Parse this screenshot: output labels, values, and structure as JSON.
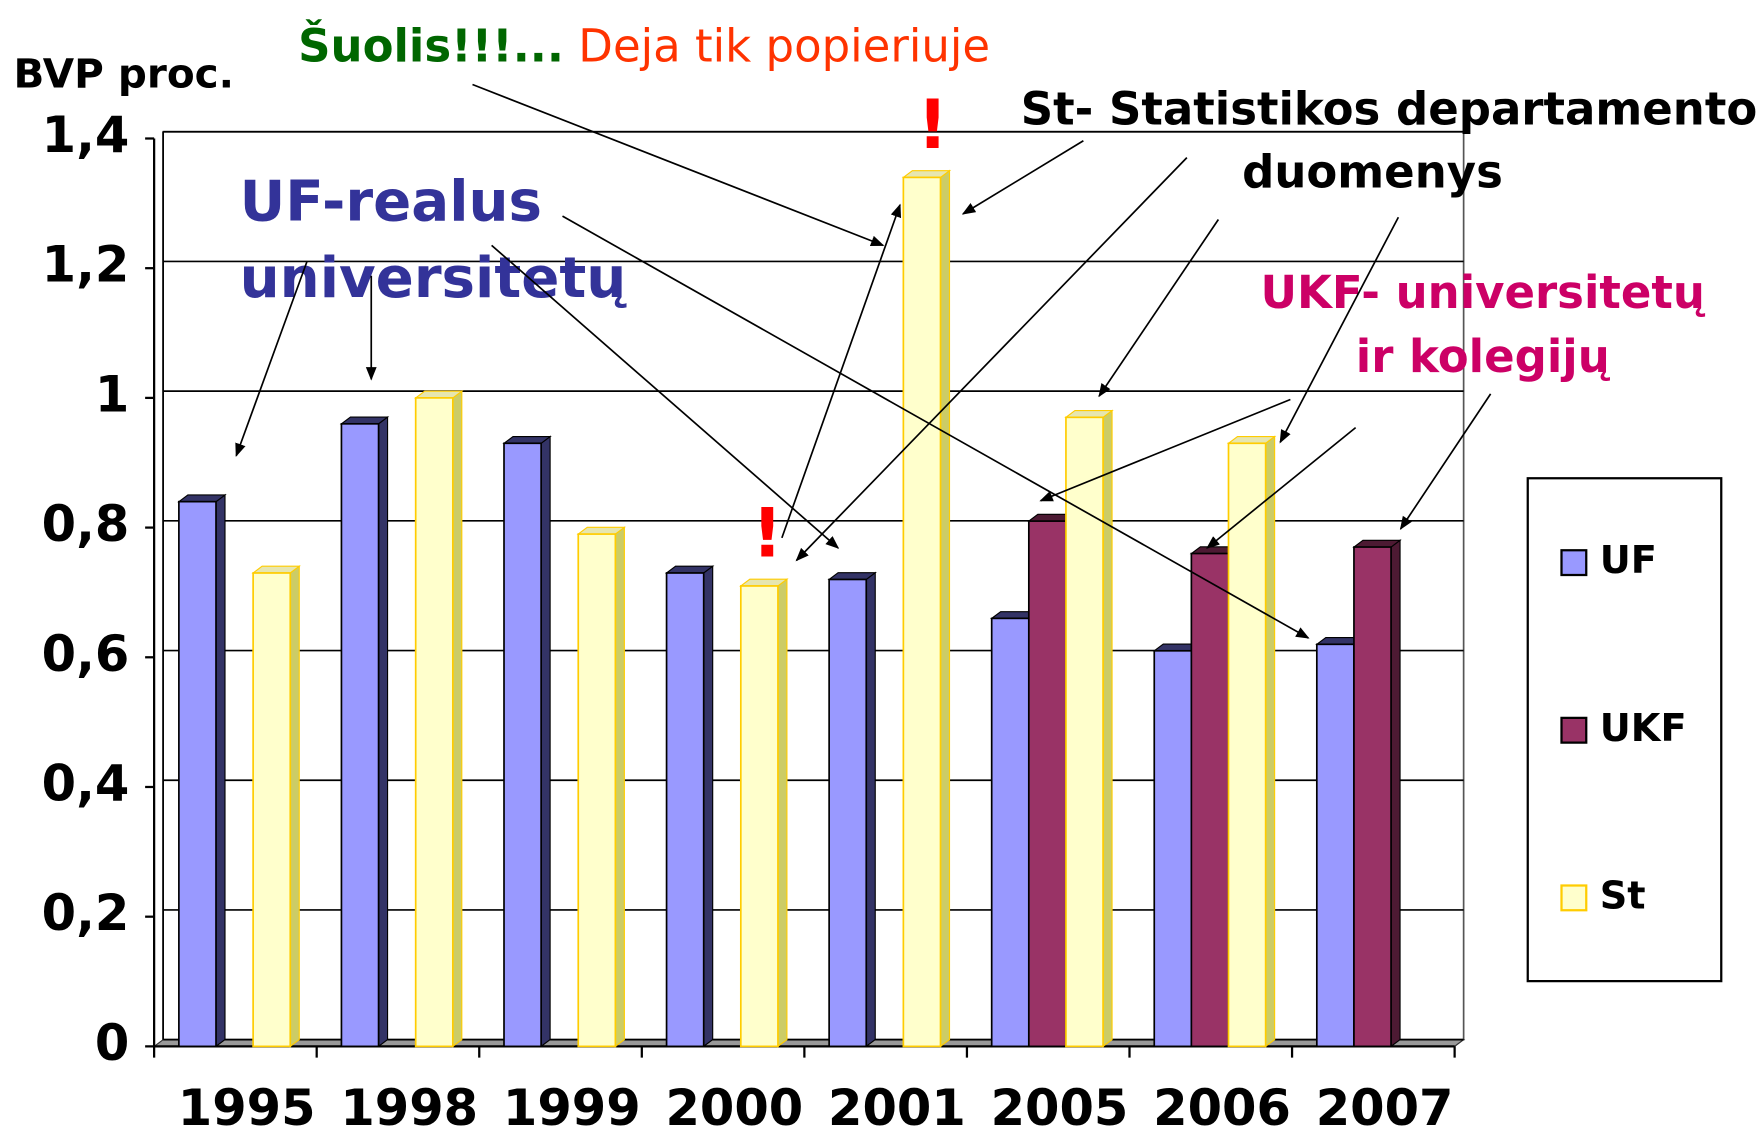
{
  "chart_data": {
    "type": "bar3d",
    "ylabel": "BVP proc.",
    "title_parts": [
      "Šuolis!!!...",
      " Deja tik  popieriuje"
    ],
    "annotations": [
      "UF-realus",
      "universitetų",
      "St- Statistikos departamento",
      "duomenys",
      "UKF- universitetų",
      "ir kolegijų",
      "!",
      "!"
    ],
    "categories": [
      "1995",
      "1998",
      "1999",
      "2000",
      "2001",
      "2005",
      "2006",
      "2007"
    ],
    "series": [
      {
        "name": "UF",
        "color": "#9999ff",
        "values": [
          0.84,
          0.96,
          0.93,
          0.73,
          0.72,
          0.66,
          0.61,
          0.62
        ]
      },
      {
        "name": "UKF",
        "color": "#993366",
        "values": [
          null,
          null,
          null,
          null,
          null,
          0.81,
          0.76,
          0.77
        ]
      },
      {
        "name": "St",
        "color": "#ffffcc",
        "values": [
          0.73,
          1.0,
          0.79,
          0.71,
          1.34,
          0.97,
          0.93,
          null
        ]
      }
    ],
    "ylim": [
      0,
      1.4
    ],
    "yticks": [
      0,
      {
        "value": 0.2,
        "label": "0,2"
      },
      {
        "value": 0.4,
        "label": "0,4"
      },
      {
        "value": 0.6,
        "label": "0,6"
      },
      {
        "value": 0.8,
        "label": "0,8"
      },
      1,
      {
        "value": 1.2,
        "label": "1,2"
      },
      {
        "value": 1.4,
        "label": "1,4"
      }
    ],
    "grid": true,
    "legend": "right"
  }
}
